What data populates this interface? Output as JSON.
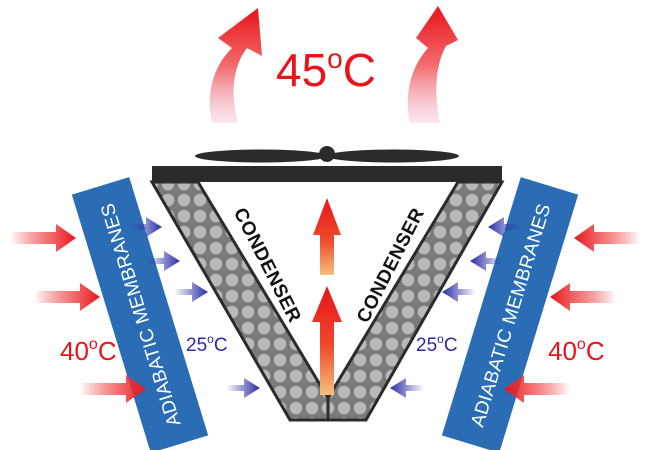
{
  "diagram": {
    "outlet_temperature": {
      "value": "45",
      "unit": "C"
    },
    "membranes": [
      {
        "label": "ADIABATIC MEMBRANES"
      },
      {
        "label": "ADIABATIC MEMBRANES"
      }
    ],
    "condensers": [
      {
        "label": "CONDENSER"
      },
      {
        "label": "CONDENSER"
      }
    ],
    "ambient_temperature": [
      {
        "value": "40",
        "unit": "C"
      },
      {
        "value": "40",
        "unit": "C"
      }
    ],
    "cooled_temperature": [
      {
        "value": "25",
        "unit": "C"
      },
      {
        "value": "25",
        "unit": "C"
      }
    ],
    "colors": {
      "hot": "#e8141b",
      "cool": "#2a2aa8",
      "membrane": "#2a6db5",
      "condenser": "#808080",
      "frame": "#2b2b2b"
    },
    "icons": [
      "fan-icon",
      "hot-air-up-arrow-icon",
      "hot-air-in-arrow-icon",
      "cool-air-arrow-icon"
    ]
  }
}
